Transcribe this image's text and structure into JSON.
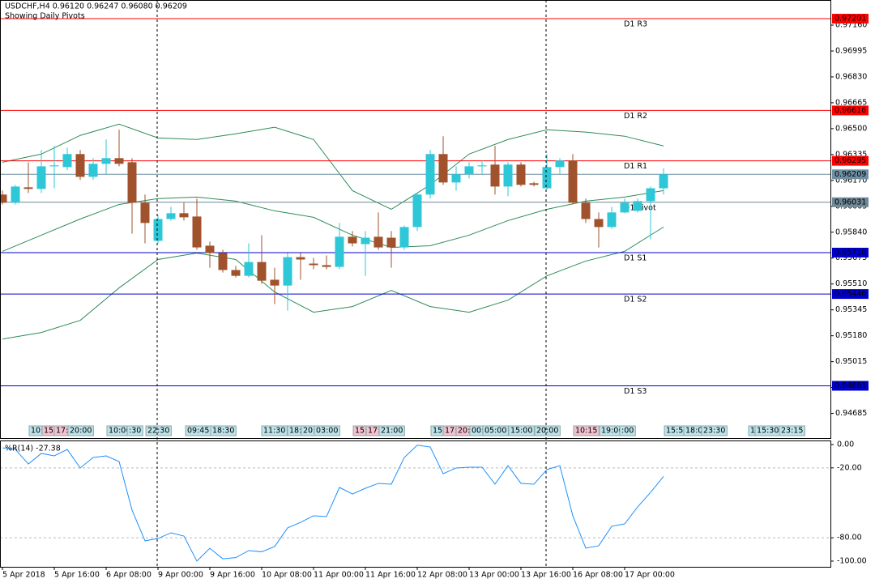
{
  "chart_data": [
    {
      "type": "candlestick",
      "title": "USDCHF,H4  0.96120 0.96247 0.96080 0.96209",
      "subtitle": "Showing Daily Pivots",
      "categories": [
        "5 Apr 2018",
        null,
        null,
        null,
        "5 Apr 16:00",
        null,
        null,
        null,
        "6 Apr 08:00",
        null,
        null,
        null,
        "9 Apr 00:00",
        null,
        null,
        null,
        "9 Apr 16:00",
        null,
        null,
        null,
        "10 Apr 08:00",
        null,
        null,
        null,
        "11 Apr 00:00",
        null,
        null,
        null,
        "11 Apr 16:00",
        null,
        null,
        null,
        "12 Apr 08:00",
        null,
        null,
        null,
        "13 Apr 00:00",
        null,
        null,
        null,
        "13 Apr 16:00",
        null,
        null,
        null,
        "16 Apr 08:00",
        null,
        null,
        null,
        "17 Apr 00:00",
        null,
        null,
        null
      ],
      "open": [
        0.9608,
        0.96028,
        0.96126,
        0.96116,
        0.9626,
        0.96255,
        0.96338,
        0.96193,
        0.96276,
        0.96312,
        0.96286,
        0.96028,
        0.95785,
        0.95924,
        0.95961,
        0.9594,
        0.95754,
        0.95707,
        0.95599,
        0.95562,
        0.9565,
        0.95537,
        0.955,
        0.95681,
        0.9564,
        0.9563,
        0.95619,
        0.95811,
        0.95764,
        0.95811,
        0.95805,
        0.95743,
        0.95873,
        0.9608,
        0.96338,
        0.96157,
        0.96209,
        0.9626,
        0.96271,
        0.96131,
        0.96271,
        0.96152,
        0.9612,
        0.96255,
        0.96297,
        0.96028,
        0.95924,
        0.95873,
        0.95966,
        0.95976,
        0.96038,
        0.9612
      ],
      "high": [
        0.96105,
        0.96142,
        0.96286,
        0.96364,
        0.9639,
        0.96379,
        0.96364,
        0.96312,
        0.96431,
        0.96493,
        0.96312,
        0.9608,
        0.9595,
        0.96002,
        0.96028,
        0.96054,
        0.9578,
        0.95728,
        0.95625,
        0.95769,
        0.95821,
        0.95614,
        0.95707,
        0.95707,
        0.95676,
        0.95692,
        0.95899,
        0.95847,
        0.95847,
        0.95966,
        0.95847,
        0.95883,
        0.9609,
        0.96364,
        0.96452,
        0.9626,
        0.96286,
        0.96297,
        0.9639,
        0.96286,
        0.96286,
        0.96162,
        0.96338,
        0.96312,
        0.96338,
        0.96054,
        0.95966,
        0.96002,
        0.96054,
        0.96054,
        0.96131,
        0.96247
      ],
      "low": [
        0.96017,
        0.96017,
        0.9609,
        0.9609,
        0.9612,
        0.96235,
        0.96173,
        0.96173,
        0.96209,
        0.9626,
        0.95831,
        0.95769,
        0.95769,
        0.95914,
        0.95914,
        0.95728,
        0.95614,
        0.95583,
        0.95552,
        0.95552,
        0.95511,
        0.95382,
        0.9534,
        0.95537,
        0.95604,
        0.95604,
        0.95604,
        0.95749,
        0.95562,
        0.95728,
        0.95614,
        0.95728,
        0.95847,
        0.96054,
        0.96142,
        0.96105,
        0.96183,
        0.96209,
        0.9608,
        0.96069,
        0.96131,
        0.96131,
        0.9611,
        0.96209,
        0.96017,
        0.95899,
        0.95743,
        0.95862,
        0.95961,
        0.95966,
        0.95795,
        0.9608
      ],
      "close": [
        0.96028,
        0.96131,
        0.96116,
        0.9626,
        0.96266,
        0.96338,
        0.96193,
        0.96276,
        0.96312,
        0.96276,
        0.96028,
        0.95899,
        0.95924,
        0.95961,
        0.95935,
        0.95743,
        0.95707,
        0.95599,
        0.95562,
        0.9565,
        0.95531,
        0.955,
        0.95681,
        0.95666,
        0.9563,
        0.95619,
        0.95811,
        0.95769,
        0.95805,
        0.95743,
        0.95743,
        0.95873,
        0.9608,
        0.96338,
        0.96157,
        0.96209,
        0.9626,
        0.96266,
        0.96131,
        0.96271,
        0.96142,
        0.96142,
        0.96255,
        0.96297,
        0.96028,
        0.95924,
        0.95873,
        0.95966,
        0.96028,
        0.96038,
        0.9612,
        0.96209
      ],
      "up_color": "#2ec7d8",
      "down_color": "#a0522d",
      "bands": {
        "color": "#2e8b57",
        "x": [
          0,
          3,
          6,
          9,
          12,
          15,
          18,
          21,
          24,
          27,
          30,
          33,
          36,
          39,
          42,
          45,
          48,
          51
        ],
        "series": [
          {
            "values": [
              0.96286,
              0.96338,
              0.96457,
              0.96529,
              0.96441,
              0.96431,
              0.96467,
              0.96509,
              0.96431,
              0.96105,
              0.95986,
              0.96142,
              0.96338,
              0.96431,
              0.96493,
              0.96478,
              0.96452,
              0.9639
            ]
          },
          {
            "values": [
              0.95718,
              0.95821,
              0.95924,
              0.96017,
              0.96054,
              0.96064,
              0.96038,
              0.95976,
              0.95935,
              0.95821,
              0.95743,
              0.95754,
              0.95821,
              0.95914,
              0.95986,
              0.96038,
              0.96064,
              0.96105
            ]
          },
          {
            "values": [
              0.95159,
              0.95201,
              0.95278,
              0.95485,
              0.95666,
              0.95707,
              0.95666,
              0.95459,
              0.9533,
              0.95366,
              0.95469,
              0.95366,
              0.9533,
              0.95407,
              0.95562,
              0.95656,
              0.95718,
              0.95873
            ]
          }
        ]
      },
      "levels": [
        {
          "name": "D1 R3",
          "value": 0.97201,
          "label": "0.97201",
          "color": "#ff0000"
        },
        {
          "name": "D1 R2",
          "value": 0.96616,
          "label": "0.96616",
          "color": "#ff0000"
        },
        {
          "name": "D1 R1",
          "value": 0.96295,
          "label": "0.96295",
          "color": "#ff0000"
        },
        {
          "name": "D1 Pivot",
          "value": 0.96031,
          "label": "0.96031",
          "color": "#6f8795"
        },
        {
          "name": "D1 S1",
          "value": 0.9571,
          "label": "0.95710",
          "color": "#0000cd"
        },
        {
          "name": "D1 S2",
          "value": 0.95446,
          "label": "0.95446",
          "color": "#0000cd"
        },
        {
          "name": "D1 S3",
          "value": 0.94861,
          "label": "0.94861",
          "color": "#0000cd"
        }
      ],
      "bid": {
        "value": 0.96209,
        "label": "0.96209",
        "color": "#6f8fa3"
      },
      "events": [
        "10:",
        "15:",
        "17:",
        "20:00",
        "10:00",
        ":30",
        "22:30",
        "09:45",
        "18:30",
        "11:30",
        "18:",
        "20:",
        "03:00",
        "15:",
        "17:",
        "21:00",
        "15:",
        "17:",
        "20:",
        "00:",
        "05:00",
        "15:00",
        "20:00",
        "10:15",
        "19:00",
        ":00",
        "15:55",
        "18:0",
        "23:30",
        "1",
        "15:30",
        "23:15"
      ],
      "ylim": [
        0.94528,
        0.9732
      ],
      "yticks": [
        {
          "value": 0.9716,
          "label": "0.97160"
        },
        {
          "value": 0.96995,
          "label": "0.96995"
        },
        {
          "value": 0.9683,
          "label": "0.96830"
        },
        {
          "value": 0.96665,
          "label": "0.96665"
        },
        {
          "value": 0.965,
          "label": "0.96500"
        },
        {
          "value": 0.96335,
          "label": "0.96335"
        },
        {
          "value": 0.9617,
          "label": "0.96170"
        },
        {
          "value": 0.96005,
          "label": "0.96005"
        },
        {
          "value": 0.9584,
          "label": "0.95840"
        },
        {
          "value": 0.95675,
          "label": "0.95675"
        },
        {
          "value": 0.9551,
          "label": "0.95510"
        },
        {
          "value": 0.95345,
          "label": "0.95345"
        },
        {
          "value": 0.9518,
          "label": "0.95180"
        },
        {
          "value": 0.95015,
          "label": "0.95015"
        },
        {
          "value": 0.9485,
          "label": "0.94850"
        },
        {
          "value": 0.94685,
          "label": "0.94685"
        }
      ]
    },
    {
      "type": "line",
      "title": "%R(14) -27.38",
      "series": [
        {
          "name": "%R(14)",
          "color": "#1e90ff",
          "values": [
            -2.8,
            -4.2,
            -16.7,
            -7.6,
            -9.7,
            -4.2,
            -20.1,
            -11.1,
            -9.7,
            -14.6,
            -56.3,
            -82.6,
            -80.6,
            -75.7,
            -78.5,
            -100,
            -89,
            -98,
            -97,
            -91,
            -92,
            -87.5,
            -71.5,
            -66.7,
            -61.1,
            -61.8,
            -36.8,
            -42.4,
            -37.5,
            -33.3,
            -34.0,
            -11.1,
            -0.5,
            -2.1,
            -25.0,
            -20.1,
            -19.4,
            -19.4,
            -34.0,
            -18.1,
            -33.3,
            -34.0,
            -21.5,
            -18.1,
            -61.1,
            -88.9,
            -86.8,
            -70.1,
            -68.1,
            -53.5,
            -41.0,
            -27.38
          ]
        }
      ],
      "levels": [
        -20,
        -80
      ],
      "ylim": [
        -104.9,
        2.8
      ],
      "yticks": [
        {
          "value": 0,
          "label": "0.00"
        },
        {
          "value": -20,
          "label": "-20.00"
        },
        {
          "value": -80,
          "label": "-80.00"
        },
        {
          "value": -100,
          "label": "-100.00"
        }
      ]
    }
  ]
}
